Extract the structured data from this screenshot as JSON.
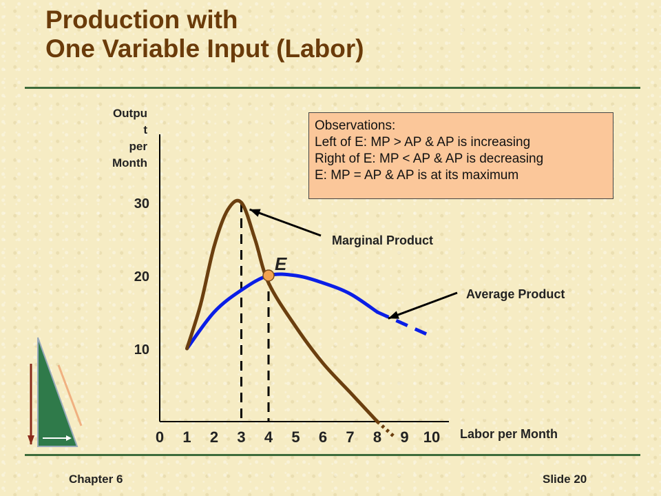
{
  "title_line1": "Production with",
  "title_line2": "One Variable Input (Labor)",
  "footer": {
    "chapter": "Chapter 6",
    "slide": "Slide 20"
  },
  "observations": {
    "heading": "Observations:",
    "lines": [
      "Left of E: MP > AP & AP is increasing",
      "Right of E: MP < AP & AP is decreasing",
      "E: MP = AP & AP is at its maximum"
    ]
  },
  "colors": {
    "mp": "#6b3f0f",
    "ap": "#0a1ee6",
    "point_e": "#f2a350",
    "title": "#6a3b0a",
    "rule": "#3d6b3a"
  },
  "chart_data": {
    "type": "line",
    "ylabel_lines": [
      "Outpu",
      "t",
      "per",
      "Month"
    ],
    "xlabel": "Labor per Month",
    "x_ticks": [
      "0",
      "1",
      "2",
      "3",
      "4",
      "5",
      "6",
      "7",
      "8",
      "9",
      "10"
    ],
    "y_ticks": [
      "10",
      "20",
      "30"
    ],
    "xlim": [
      0,
      10
    ],
    "ylim": [
      0,
      33
    ],
    "series": [
      {
        "name": "Marginal Product",
        "x": [
          1,
          1.5,
          2,
          2.5,
          3,
          3.5,
          4,
          5,
          6,
          7,
          8
        ],
        "y": [
          10,
          16,
          24,
          29,
          30,
          25,
          19,
          13,
          8,
          4,
          0
        ],
        "dotted_x": [
          8,
          8.6
        ],
        "dotted_y": [
          0,
          -2
        ]
      },
      {
        "name": "Average Product",
        "x": [
          1,
          2,
          3,
          4,
          5,
          6,
          7,
          8
        ],
        "y": [
          10,
          15,
          18,
          20,
          20,
          19,
          17.5,
          15
        ],
        "dashed_x": [
          8,
          9.8
        ],
        "dashed_y": [
          15,
          12
        ]
      }
    ],
    "point": {
      "label": "E",
      "x": 4,
      "y": 20
    },
    "annotations": [
      {
        "text": "Marginal Product",
        "target": "MP at x=3"
      },
      {
        "text": "Average Product",
        "target": "AP at x=8"
      }
    ]
  }
}
